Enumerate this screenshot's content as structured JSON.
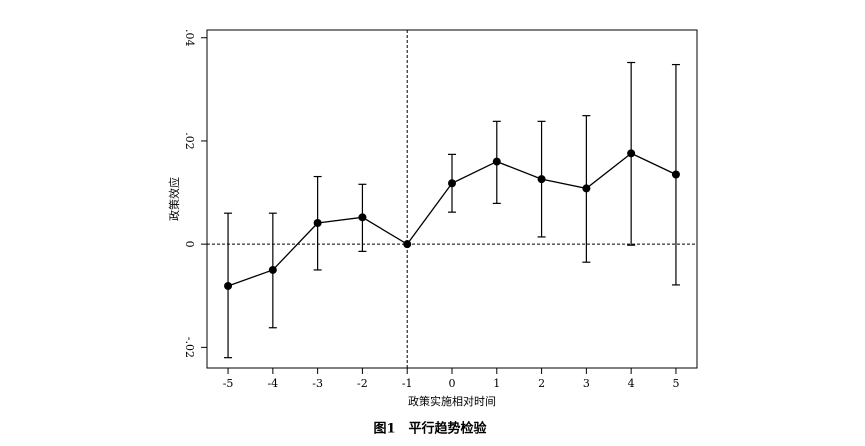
{
  "chart_data": {
    "type": "line",
    "y_label": "政策效应",
    "x_label": "政策实施相对时间",
    "caption": "图1　平行趋势检验",
    "x": [
      -5,
      -4,
      -3,
      -2,
      -1,
      0,
      1,
      2,
      3,
      4,
      5
    ],
    "series": [
      {
        "color": "#000000",
        "values": [
          -0.0081,
          -0.005,
          0.0041,
          0.0052,
          0,
          0.0118,
          0.016,
          0.0126,
          0.0108,
          0.0176,
          0.0135
        ],
        "lower": [
          -0.022,
          -0.0162,
          -0.005,
          -0.0014,
          null,
          0.0062,
          0.0079,
          0.0014,
          -0.0035,
          -0.0002,
          -0.0079
        ],
        "upper": [
          0.006,
          0.006,
          0.0131,
          0.0116,
          null,
          0.0174,
          0.0238,
          0.0238,
          0.0249,
          0.0352,
          0.0348
        ]
      }
    ],
    "xlim": [
      -5.47,
      5.47
    ],
    "ylim": [
      -0.024,
      0.0415
    ],
    "xticks": [
      -5,
      -4,
      -3,
      -2,
      -1,
      0,
      1,
      2,
      3,
      4,
      5
    ],
    "yticks": [
      {
        "value": -0.02,
        "label": "-.02"
      },
      0,
      {
        "value": 0.02,
        "label": ".02"
      },
      {
        "value": 0.04,
        "label": ".04"
      }
    ],
    "vline": -1,
    "hline": 0
  }
}
